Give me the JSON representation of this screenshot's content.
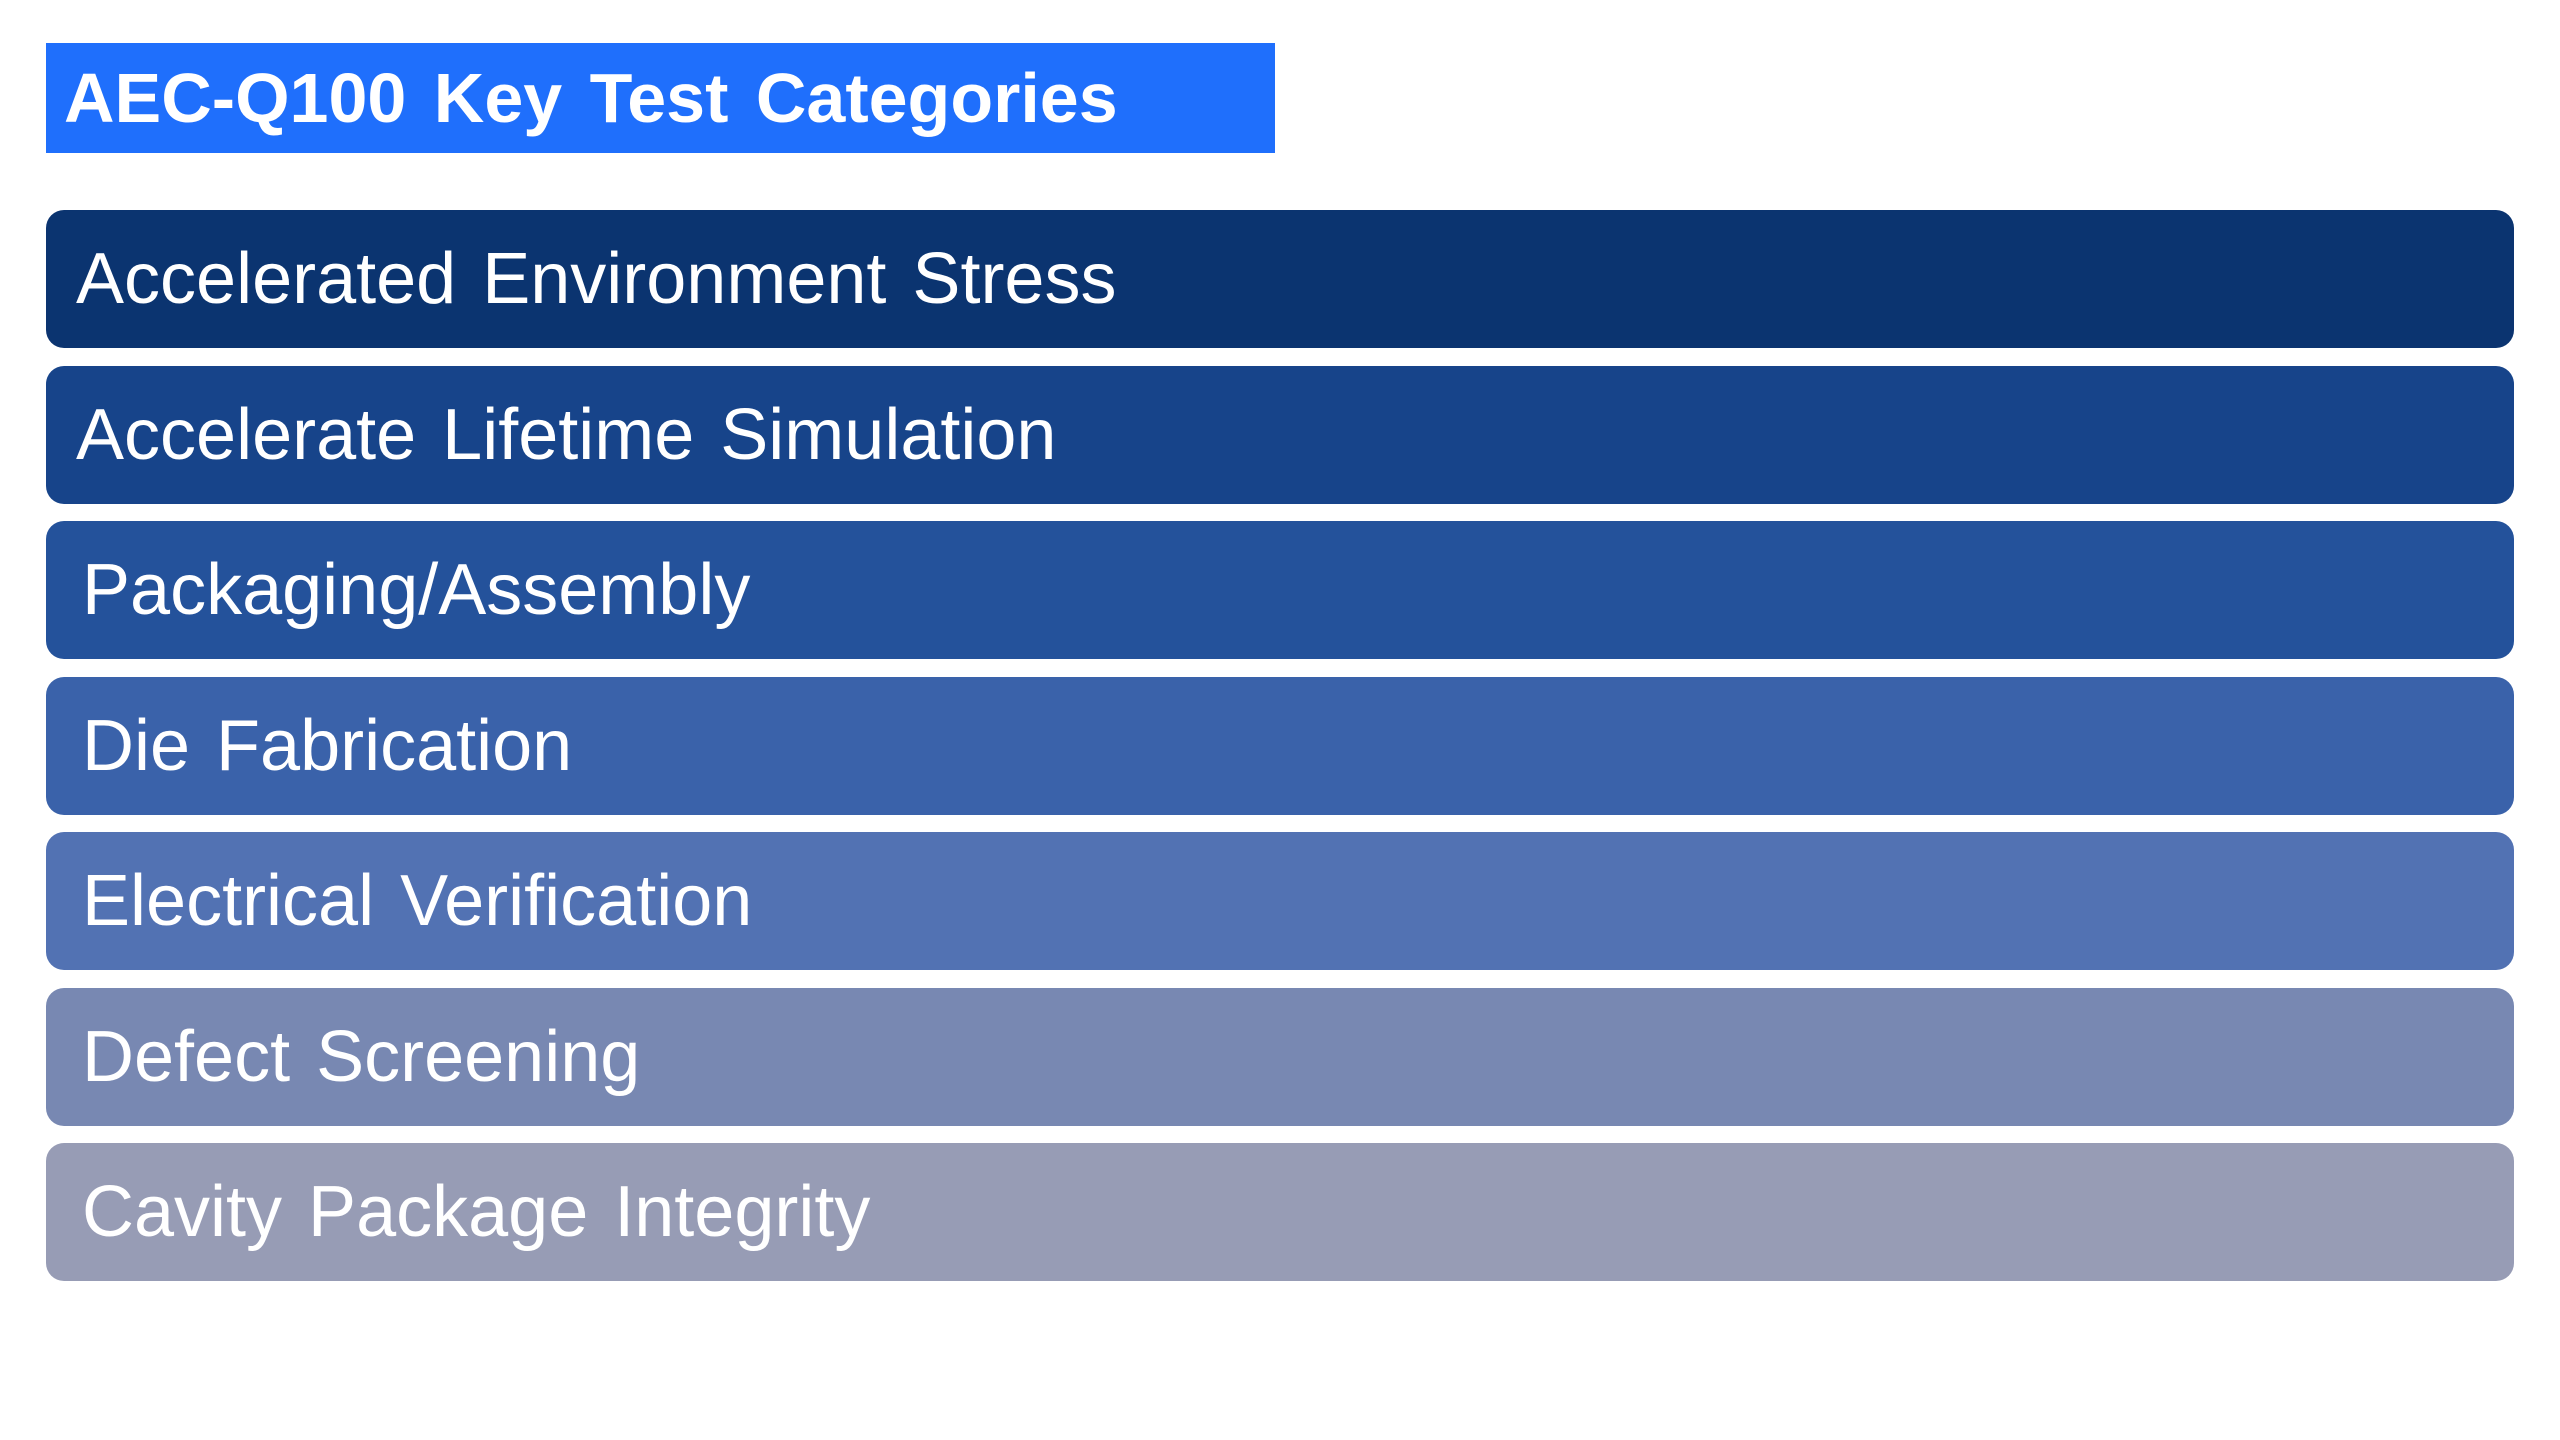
{
  "header": {
    "title": "AEC-Q100 Key Test Categories"
  },
  "items": [
    "Accelerated Environment Stress",
    "Accelerate Lifetime Simulation",
    "Packaging/Assembly",
    "Die Fabrication",
    "Electrical Verification",
    "Defect Screening",
    "Cavity Package Integrity"
  ]
}
